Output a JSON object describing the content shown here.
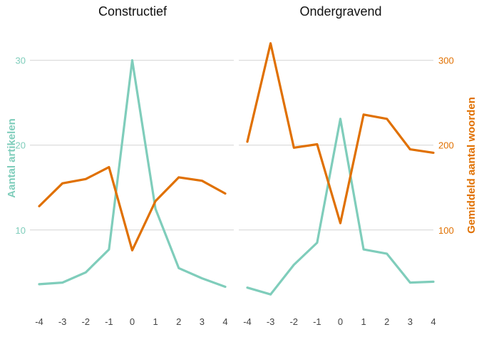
{
  "chart_data": {
    "type": "line",
    "x": [
      -4,
      -3,
      -2,
      -1,
      0,
      1,
      2,
      3,
      4
    ],
    "left_axis": {
      "label": "Aantal artikelen",
      "ticks": [
        10,
        20,
        30
      ],
      "range": [
        2,
        34
      ],
      "color": "#7fcdbb"
    },
    "right_axis": {
      "label": "Gemiddeld aantal woorden",
      "ticks": [
        100,
        200,
        300
      ],
      "range": [
        20,
        340
      ],
      "color": "#e07000"
    },
    "grid": true,
    "panels": [
      {
        "title": "Constructief",
        "series": [
          {
            "axis": "left",
            "color": "#7fcdbb",
            "values": [
              3.6,
              3.8,
              5.0,
              7.7,
              30.0,
              12.5,
              5.5,
              4.3,
              3.3
            ]
          },
          {
            "axis": "right",
            "color": "#e07000",
            "values": [
              128,
              155,
              160,
              174,
              76,
              134,
              162,
              158,
              143
            ]
          }
        ]
      },
      {
        "title": "Ondergravend",
        "series": [
          {
            "axis": "left",
            "color": "#7fcdbb",
            "values": [
              3.2,
              2.4,
              5.9,
              8.5,
              23.1,
              7.7,
              7.2,
              3.8,
              3.9
            ]
          },
          {
            "axis": "right",
            "color": "#e07000",
            "values": [
              204,
              320,
              197,
              201,
              108,
              236,
              231,
              195,
              191
            ]
          }
        ]
      }
    ]
  }
}
